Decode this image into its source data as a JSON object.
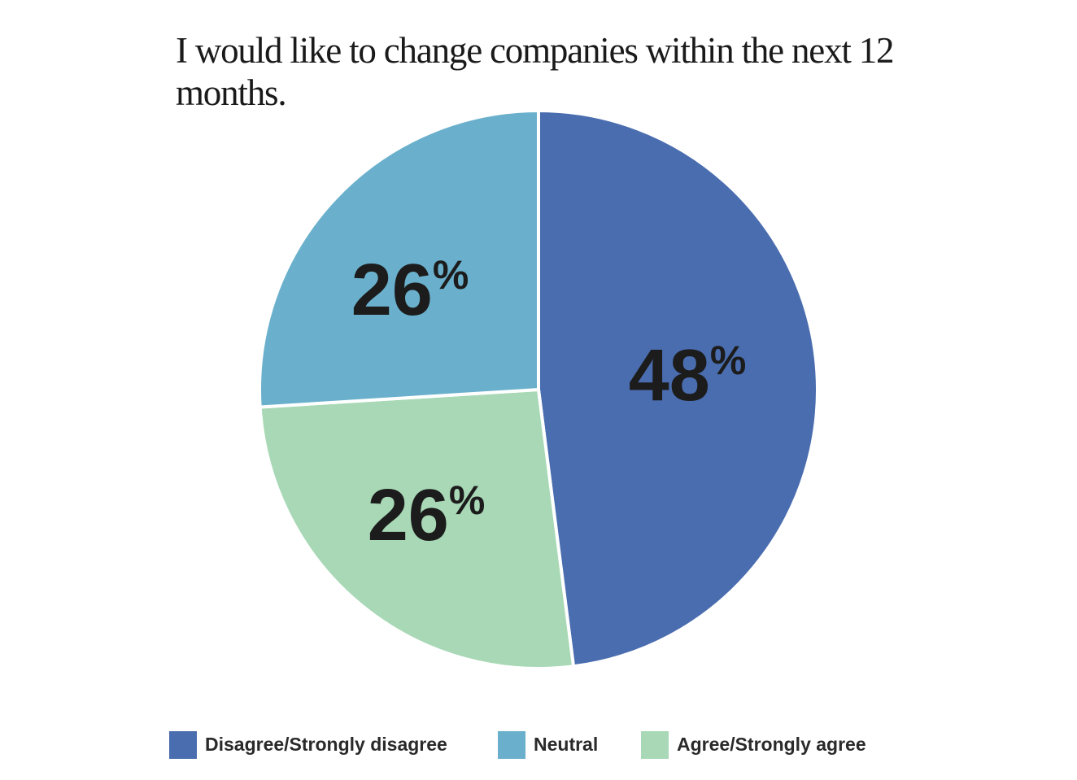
{
  "chart_data": {
    "type": "pie",
    "title": "I would like to change companies within the next 12 months.",
    "slices": [
      {
        "label": "Disagree/Strongly disagree",
        "value": 48,
        "display": "48",
        "color": "#4a6daf"
      },
      {
        "label": "Agree/Strongly agree",
        "value": 26,
        "display": "26",
        "color": "#a8d8b5"
      },
      {
        "label": "Neutral",
        "value": 26,
        "display": "26",
        "color": "#6ab0cc"
      }
    ],
    "percent_symbol": "%",
    "legend": [
      {
        "label": "Disagree/Strongly disagree",
        "color": "#4a6daf"
      },
      {
        "label": "Neutral",
        "color": "#6ab0cc"
      },
      {
        "label": "Agree/Strongly agree",
        "color": "#a8d8b5"
      }
    ],
    "legend_position": "bottom"
  }
}
